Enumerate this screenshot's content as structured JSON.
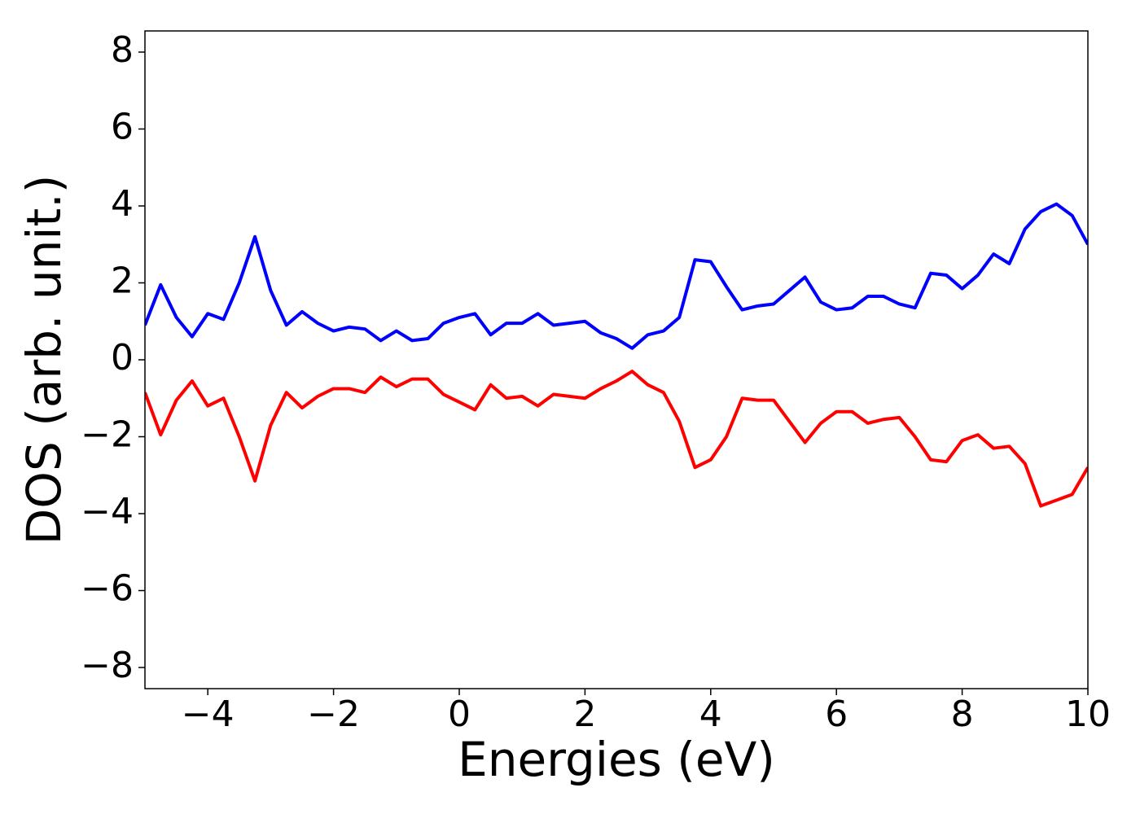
{
  "chart_data": {
    "type": "line",
    "xlabel": "Energies (eV)",
    "ylabel": "DOS (arb. unit.)",
    "x": [
      -5,
      -4.75,
      -4.5,
      -4.25,
      -4,
      -3.75,
      -3.5,
      -3.25,
      -3,
      -2.75,
      -2.5,
      -2.25,
      -2,
      -1.75,
      -1.5,
      -1.25,
      -1,
      -0.75,
      -0.5,
      -0.25,
      0,
      0.25,
      0.5,
      0.75,
      1,
      1.25,
      1.5,
      1.75,
      2,
      2.25,
      2.5,
      2.75,
      3,
      3.25,
      3.5,
      3.75,
      4,
      4.25,
      4.5,
      4.75,
      5,
      5.25,
      5.5,
      5.75,
      6,
      6.25,
      6.5,
      6.75,
      7,
      7.25,
      7.5,
      7.75,
      8,
      8.25,
      8.5,
      8.75,
      9,
      9.25,
      9.5,
      9.75,
      10
    ],
    "series": [
      {
        "color": "#0000ff",
        "values": [
          0.9,
          1.95,
          1.1,
          0.6,
          1.2,
          1.05,
          2.0,
          3.2,
          1.8,
          0.9,
          1.25,
          0.95,
          0.75,
          0.85,
          0.8,
          0.5,
          0.75,
          0.5,
          0.55,
          0.95,
          1.1,
          1.2,
          0.65,
          0.95,
          0.95,
          1.2,
          0.9,
          0.95,
          1.0,
          0.7,
          0.55,
          0.3,
          0.65,
          0.75,
          1.1,
          2.6,
          2.55,
          1.9,
          1.3,
          1.4,
          1.45,
          1.8,
          2.15,
          1.5,
          1.3,
          1.35,
          1.65,
          1.65,
          1.45,
          1.35,
          2.25,
          2.2,
          1.85,
          2.2,
          2.75,
          2.5,
          3.4,
          3.85,
          4.05,
          3.75,
          3.0
        ]
      },
      {
        "color": "#ff0000",
        "values": [
          -0.85,
          -1.95,
          -1.05,
          -0.55,
          -1.2,
          -1.0,
          -2.0,
          -3.15,
          -1.7,
          -0.85,
          -1.25,
          -0.95,
          -0.75,
          -0.75,
          -0.85,
          -0.45,
          -0.7,
          -0.5,
          -0.5,
          -0.9,
          -1.1,
          -1.3,
          -0.65,
          -1.0,
          -0.95,
          -1.2,
          -0.9,
          -0.95,
          -1.0,
          -0.75,
          -0.55,
          -0.3,
          -0.65,
          -0.85,
          -1.6,
          -2.8,
          -2.6,
          -2.0,
          -1.0,
          -1.05,
          -1.05,
          -1.6,
          -2.15,
          -1.65,
          -1.35,
          -1.35,
          -1.65,
          -1.55,
          -1.5,
          -2.0,
          -2.6,
          -2.65,
          -2.1,
          -1.95,
          -2.3,
          -2.25,
          -2.7,
          -3.8,
          -3.65,
          -3.5,
          -2.8
        ]
      }
    ],
    "xlim": [
      -5,
      10
    ],
    "xticks": [
      {
        "value": -4,
        "label": "−4"
      },
      {
        "value": -2,
        "label": "−2"
      },
      0,
      2,
      4,
      6,
      8,
      10
    ],
    "ylim": [
      -8.55,
      8.55
    ],
    "yticks": [
      {
        "value": -8,
        "label": "−8"
      },
      {
        "value": -6,
        "label": "−6"
      },
      {
        "value": -4,
        "label": "−4"
      },
      {
        "value": -2,
        "label": "−2"
      },
      0,
      2,
      4,
      6,
      8
    ]
  }
}
